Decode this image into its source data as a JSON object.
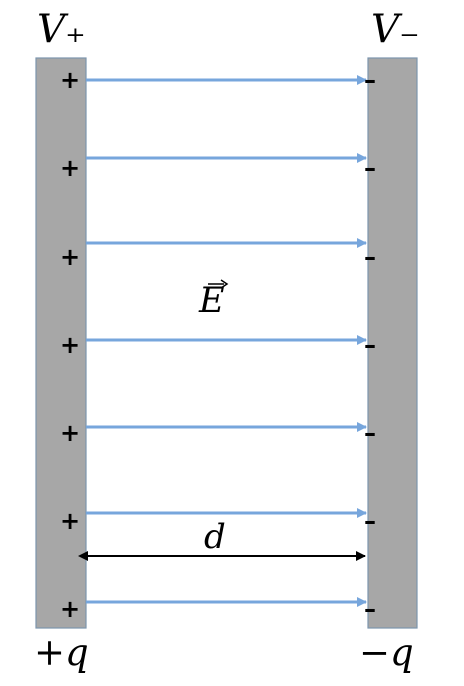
{
  "labels": {
    "v_plus": "V₊",
    "v_minus": "V₋",
    "q_plus": "+q",
    "q_minus": "−q",
    "field": "E",
    "distance": "d"
  },
  "signs": {
    "plus": "+",
    "minus": "–"
  },
  "charge_count": 7,
  "colors": {
    "plate_fill": "#a7a7a7",
    "plate_edge": "#7c95ad",
    "field_line": "#77a6dc",
    "arrow_black": "#000000"
  }
}
